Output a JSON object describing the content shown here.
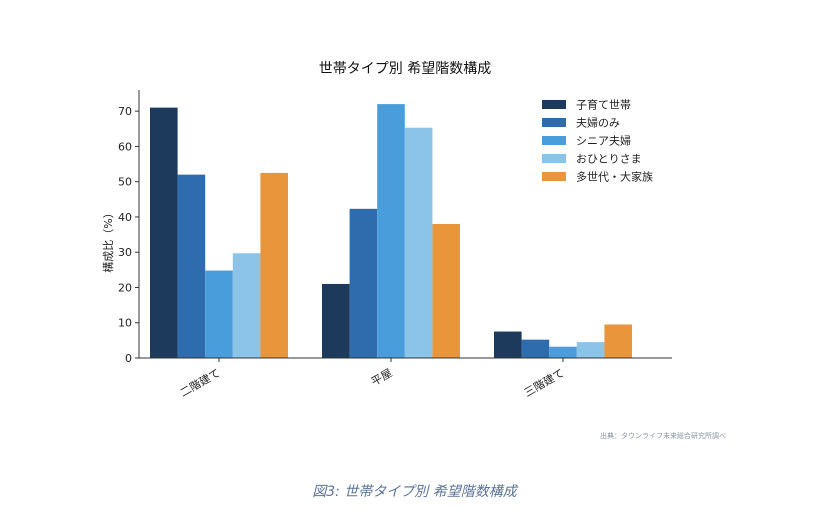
{
  "caption": "図3: 世帯タイプ別 希望階数構成",
  "source_note": "出典：タウンライフ未来総合研究所調べ",
  "chart_data": {
    "type": "bar",
    "title": "世帯タイプ別 希望階数構成",
    "xlabel": "",
    "ylabel": "構成比（%）",
    "ylim": [
      0,
      76
    ],
    "yticks": [
      0,
      10,
      20,
      30,
      40,
      50,
      60,
      70
    ],
    "categories": [
      "二階建て",
      "平屋",
      "三階建て"
    ],
    "series": [
      {
        "name": "子育て世帯",
        "color": "#1d3a5c",
        "values": [
          71.0,
          21.0,
          7.5
        ]
      },
      {
        "name": "夫婦のみ",
        "color": "#2f6cad",
        "values": [
          52.0,
          42.3,
          5.2
        ]
      },
      {
        "name": "シニア夫婦",
        "color": "#4a9ddb",
        "values": [
          24.8,
          72.0,
          3.2
        ]
      },
      {
        "name": "おひとりさま",
        "color": "#8cc3e8",
        "values": [
          29.7,
          65.3,
          4.5
        ]
      },
      {
        "name": "多世代・大家族",
        "color": "#e8953b",
        "values": [
          52.5,
          38.0,
          9.5
        ]
      }
    ],
    "grid": false,
    "legend_position": "top-right"
  }
}
